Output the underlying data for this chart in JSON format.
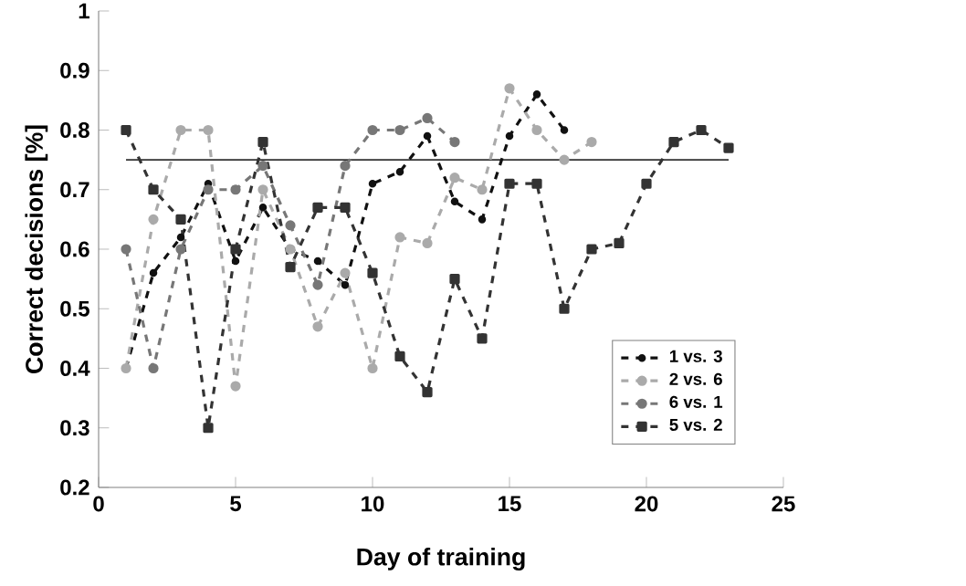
{
  "chart_data": {
    "type": "line",
    "xlabel": "Day of training",
    "ylabel": "Correct decisions [%]",
    "xlim": [
      0,
      25
    ],
    "xticks": [
      0,
      5,
      10,
      15,
      20,
      25
    ],
    "ylim": [
      0.2,
      1
    ],
    "yticks": [
      0.2,
      0.3,
      0.4,
      0.5,
      0.6,
      0.7,
      0.8,
      0.9,
      1
    ],
    "grid": false,
    "legend": "bottom right",
    "marker": "circle",
    "line_style": "dashed",
    "ref_lines": [
      {
        "axis": "y",
        "value": 0.75,
        "color": "#333333"
      }
    ],
    "series": [
      {
        "name": "1 vs. 3",
        "color": "#111111",
        "x": [
          1,
          2,
          3,
          4,
          5,
          6,
          7,
          8,
          9,
          10,
          11,
          12,
          13,
          14,
          15,
          16,
          17
        ],
        "values": [
          0.4,
          0.56,
          0.62,
          0.71,
          0.58,
          0.67,
          0.6,
          0.58,
          0.54,
          0.71,
          0.73,
          0.79,
          0.68,
          0.65,
          0.79,
          0.86,
          0.8
        ]
      },
      {
        "name": "2 vs. 6",
        "color": "#aaaaaa",
        "x": [
          1,
          2,
          3,
          4,
          5,
          6,
          7,
          8,
          9,
          10,
          11,
          12,
          13,
          14,
          15,
          16,
          17,
          18
        ],
        "values": [
          0.4,
          0.65,
          0.8,
          0.8,
          0.37,
          0.7,
          0.6,
          0.47,
          0.56,
          0.4,
          0.62,
          0.61,
          0.72,
          0.7,
          0.87,
          0.8,
          0.75,
          0.78
        ]
      },
      {
        "name": "6 vs. 1",
        "color": "#777777",
        "x": [
          1,
          2,
          3,
          4,
          5,
          6,
          7,
          8,
          9,
          10,
          11,
          12,
          13
        ],
        "values": [
          0.6,
          0.4,
          0.6,
          0.7,
          0.7,
          0.74,
          0.64,
          0.54,
          0.74,
          0.8,
          0.8,
          0.82,
          0.78
        ]
      },
      {
        "name": "5 vs. 2",
        "color": "#333333",
        "marker": "square",
        "x": [
          1,
          2,
          3,
          4,
          5,
          6,
          7,
          8,
          9,
          10,
          11,
          12,
          13,
          14,
          15,
          16,
          17,
          18,
          19,
          20,
          21,
          22,
          23
        ],
        "values": [
          0.8,
          0.7,
          0.65,
          0.3,
          0.6,
          0.78,
          0.57,
          0.67,
          0.67,
          0.56,
          0.42,
          0.36,
          0.55,
          0.45,
          0.71,
          0.71,
          0.5,
          0.6,
          0.61,
          0.71,
          0.78,
          0.8,
          0.77
        ]
      }
    ]
  }
}
